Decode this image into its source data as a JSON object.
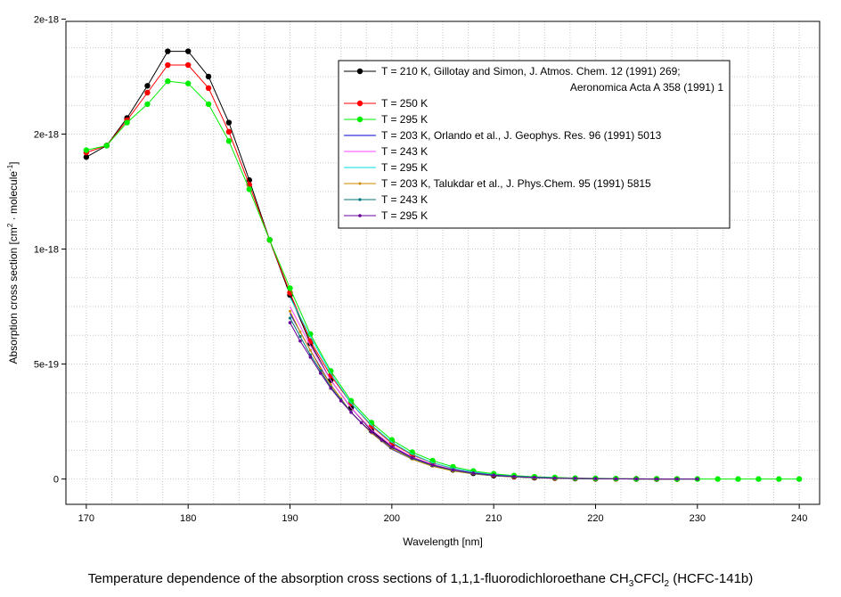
{
  "chart_data": {
    "type": "line",
    "xlabel": "Wavelength [nm]",
    "ylabel": {
      "main": "Absorption cross section [cm",
      "sup1": "2",
      "mid": " · molecule",
      "sup2": "-1",
      "end": "]"
    },
    "xlim": [
      168,
      242
    ],
    "ylim": [
      -1.1e-19,
      1.99e-18
    ],
    "x_ticks": [
      170,
      180,
      190,
      200,
      210,
      220,
      230,
      240
    ],
    "y_ticks": [
      {
        "value": 0,
        "label": "0"
      },
      {
        "value": 5e-19,
        "label": "5e-19"
      },
      {
        "value": 1e-18,
        "label": "1e-18"
      },
      {
        "value": 1.5e-18,
        "label": "2e-18"
      },
      {
        "value": 2e-18,
        "label": "2e-18"
      }
    ],
    "grid": true,
    "legend_position": "top-right",
    "series": [
      {
        "name": "T = 210 K, Gillotay and Simon, J. Atmos. Chem. 12 (1991) 269;",
        "name2": "Aeronomica Acta A 358 (1991) 1",
        "color": "#000000",
        "marker": "circle",
        "marker_size": 3.2,
        "x": [
          170,
          172,
          174,
          176,
          178,
          180,
          182,
          184,
          186,
          188,
          190,
          192,
          194,
          196,
          198,
          200,
          202,
          204,
          206,
          208,
          210,
          212,
          214,
          216,
          218,
          220,
          222,
          224,
          226,
          228
        ],
        "y": [
          1.4e-18,
          1.45e-18,
          1.57e-18,
          1.71e-18,
          1.86e-18,
          1.86e-18,
          1.75e-18,
          1.55e-18,
          1.3e-18,
          1.04e-18,
          8e-19,
          5.9e-19,
          4.3e-19,
          3.1e-19,
          2.1e-19,
          1.4e-19,
          9.5e-20,
          6.3e-20,
          4e-20,
          2.5e-20,
          1.5e-20,
          1e-20,
          6e-21,
          4e-21,
          2e-21,
          1e-21,
          1e-21,
          0,
          0,
          0
        ]
      },
      {
        "name": "T = 250 K",
        "color": "#ff0000",
        "marker": "circle",
        "marker_size": 3.2,
        "x": [
          170,
          172,
          174,
          176,
          178,
          180,
          182,
          184,
          186,
          188,
          190,
          192,
          194,
          196,
          198,
          200,
          202,
          204,
          206,
          208,
          210,
          212,
          214,
          216,
          218,
          220,
          222,
          224,
          226,
          228
        ],
        "y": [
          1.42e-18,
          1.45e-18,
          1.56e-18,
          1.68e-18,
          1.8e-18,
          1.8e-18,
          1.7e-18,
          1.51e-18,
          1.28e-18,
          1.04e-18,
          8.1e-19,
          6e-19,
          4.5e-19,
          3.3e-19,
          2.3e-19,
          1.55e-19,
          1.05e-19,
          7e-20,
          4.6e-20,
          3e-20,
          1.9e-20,
          1.2e-20,
          8e-21,
          5e-21,
          3e-21,
          2e-21,
          1e-21,
          1e-21,
          0,
          0
        ]
      },
      {
        "name": "T = 295 K",
        "color": "#00ee00",
        "marker": "circle",
        "marker_size": 3.2,
        "x": [
          170,
          172,
          174,
          176,
          178,
          180,
          182,
          184,
          186,
          188,
          190,
          192,
          194,
          196,
          198,
          200,
          202,
          204,
          206,
          208,
          210,
          212,
          214,
          216,
          218,
          220,
          222,
          224,
          226,
          228,
          230,
          232,
          234,
          236,
          238,
          240
        ],
        "y": [
          1.43e-18,
          1.45e-18,
          1.55e-18,
          1.63e-18,
          1.73e-18,
          1.72e-18,
          1.63e-18,
          1.47e-18,
          1.26e-18,
          1.04e-18,
          8.3e-19,
          6.3e-19,
          4.7e-19,
          3.4e-19,
          2.45e-19,
          1.7e-19,
          1.17e-19,
          8e-20,
          5.3e-20,
          3.5e-20,
          2.3e-20,
          1.5e-20,
          1e-20,
          7e-21,
          4e-21,
          3e-21,
          2e-21,
          1e-21,
          1e-21,
          0,
          0,
          0,
          0,
          0,
          0,
          0
        ]
      },
      {
        "name": "T = 203 K, Orlando et al., J. Geophys. Res. 96 (1991) 5013",
        "color": "#0000cc",
        "marker": "none",
        "x": [
          190,
          192,
          194,
          196,
          198,
          200,
          202,
          204,
          206,
          208,
          210,
          212,
          214,
          216
        ],
        "y": [
          7.2e-19,
          5.6e-19,
          4.1e-19,
          2.9e-19,
          2e-19,
          1.3e-19,
          8.6e-20,
          5.6e-20,
          3.6e-20,
          2.3e-20,
          1.4e-20,
          9e-21,
          5e-21,
          3e-21
        ]
      },
      {
        "name": "T = 243 K",
        "color": "#ff44ff",
        "marker": "none",
        "x": [
          190,
          192,
          194,
          196,
          198,
          200,
          202,
          204,
          206,
          208,
          210,
          212,
          214,
          216
        ],
        "y": [
          7.5e-19,
          5.8e-19,
          4.3e-19,
          3.1e-19,
          2.15e-19,
          1.45e-19,
          9.6e-20,
          6.3e-20,
          4.1e-20,
          2.6e-20,
          1.7e-20,
          1.1e-20,
          7e-21,
          4e-21
        ]
      },
      {
        "name": "T = 295 K",
        "color": "#00dddd",
        "marker": "none",
        "x": [
          190,
          192,
          194,
          196,
          198,
          200,
          202,
          204,
          206,
          208,
          210,
          212,
          214,
          216
        ],
        "y": [
          7.9e-19,
          6.2e-19,
          4.6e-19,
          3.3e-19,
          2.35e-19,
          1.6e-19,
          1.08e-19,
          7.1e-20,
          4.7e-20,
          3e-20,
          1.9e-20,
          1.2e-20,
          8e-21,
          5e-21
        ]
      },
      {
        "name": "T = 203 K, Talukdar et al., J. Phys.Chem. 95 (1991) 5815",
        "color": "#cc8800",
        "marker": "circle",
        "marker_size": 1.5,
        "x": [
          190,
          191,
          192,
          193,
          194,
          195,
          196,
          197,
          198,
          199,
          200,
          202,
          204,
          206,
          208,
          210,
          212,
          214,
          216,
          218,
          220,
          222,
          224,
          226,
          228,
          230
        ],
        "y": [
          7.3e-19,
          6.4e-19,
          5.6e-19,
          4.8e-19,
          4.1e-19,
          3.5e-19,
          2.9e-19,
          2.45e-19,
          2e-19,
          1.65e-19,
          1.33e-19,
          8.6e-20,
          5.5e-20,
          3.5e-20,
          2.2e-20,
          1.4e-20,
          9e-21,
          5e-21,
          3e-21,
          2e-21,
          1e-21,
          1e-21,
          0,
          0,
          0,
          0
        ]
      },
      {
        "name": "T = 243 K",
        "color": "#007777",
        "marker": "circle",
        "marker_size": 1.6,
        "x": [
          190,
          191,
          192,
          193,
          194,
          195,
          196,
          197,
          198,
          199,
          200,
          202,
          204,
          206,
          208,
          210,
          212,
          214,
          216,
          218,
          220,
          222,
          224,
          226,
          228,
          230
        ],
        "y": [
          7e-19,
          6.2e-19,
          5.4e-19,
          4.7e-19,
          4e-19,
          3.45e-19,
          2.9e-19,
          2.45e-19,
          2.05e-19,
          1.68e-19,
          1.38e-19,
          9e-20,
          5.9e-20,
          3.8e-20,
          2.4e-20,
          1.5e-20,
          1e-20,
          6e-21,
          4e-21,
          2e-21,
          1e-21,
          1e-21,
          0,
          0,
          0,
          0
        ]
      },
      {
        "name": "T = 295 K",
        "color": "#660099",
        "marker": "circle",
        "marker_size": 1.8,
        "x": [
          190,
          191,
          192,
          193,
          194,
          195,
          196,
          197,
          198,
          199,
          200,
          202,
          204,
          206,
          208,
          210,
          212,
          214,
          216,
          218,
          220,
          222,
          224,
          226,
          228,
          230
        ],
        "y": [
          6.8e-19,
          6e-19,
          5.3e-19,
          4.6e-19,
          3.95e-19,
          3.4e-19,
          2.9e-19,
          2.45e-19,
          2.05e-19,
          1.7e-19,
          1.4e-19,
          9.3e-20,
          6.1e-20,
          4e-20,
          2.6e-20,
          1.7e-20,
          1.1e-20,
          7e-21,
          4e-21,
          3e-21,
          2e-21,
          1e-21,
          1e-21,
          0,
          0,
          0
        ]
      }
    ]
  },
  "caption": {
    "pre": "Temperature dependence of the absorption cross sections of 1,1,1-fluorodichloroethane CH",
    "sub1": "3",
    "mid": "CFCl",
    "sub2": "2",
    "post": " (HCFC-141b)"
  }
}
